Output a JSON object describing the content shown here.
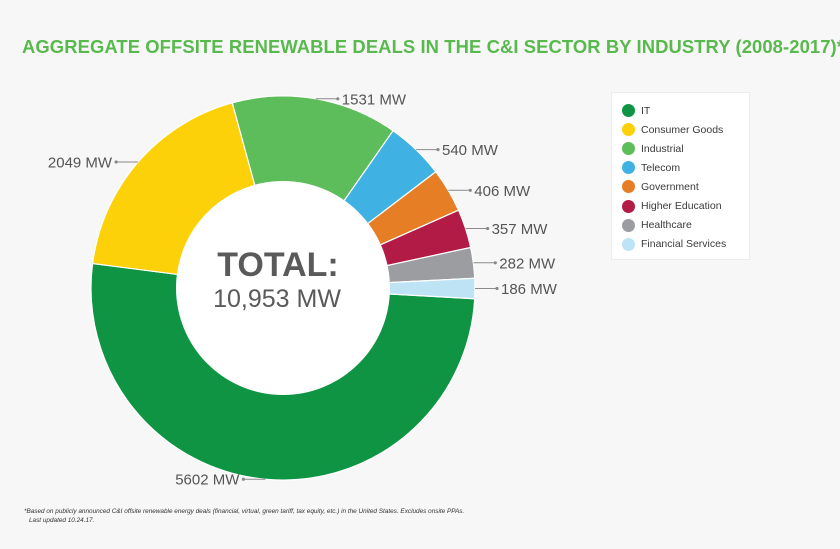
{
  "chart_data": {
    "type": "pie",
    "variant": "donut",
    "title": "AGGREGATE OFFSITE RENEWABLE DEALS IN THE C&I SECTOR BY INDUSTRY (2008-2017)*",
    "center_label": {
      "heading": "TOTAL:",
      "value": "10,953 MW"
    },
    "unit": "MW",
    "legend_position": "top-right",
    "slices": [
      {
        "name": "IT",
        "value": 5602,
        "label": "5602 MW",
        "color": "#0f9444"
      },
      {
        "name": "Consumer Goods",
        "value": 2049,
        "label": "2049 MW",
        "color": "#fdd10a"
      },
      {
        "name": "Industrial",
        "value": 1531,
        "label": "1531 MW",
        "color": "#5cbd5a"
      },
      {
        "name": "Telecom",
        "value": 540,
        "label": "540 MW",
        "color": "#3fb2e3"
      },
      {
        "name": "Government",
        "value": 406,
        "label": "406 MW",
        "color": "#e57e25"
      },
      {
        "name": "Higher Education",
        "value": 357,
        "label": "357 MW",
        "color": "#b11b45"
      },
      {
        "name": "Healthcare",
        "value": 282,
        "label": "282 MW",
        "color": "#9c9da0"
      },
      {
        "name": "Financial Services",
        "value": 186,
        "label": "186 MW",
        "color": "#bde3f5"
      }
    ]
  },
  "footnote": {
    "line1": "*Based on publicly announced C&I offsite renewable energy deals (financial, virtual, green tariff, tax equity, etc.) in the United States. Excludes onsite PPAs.",
    "line2": "Last updated 10.24.17."
  }
}
